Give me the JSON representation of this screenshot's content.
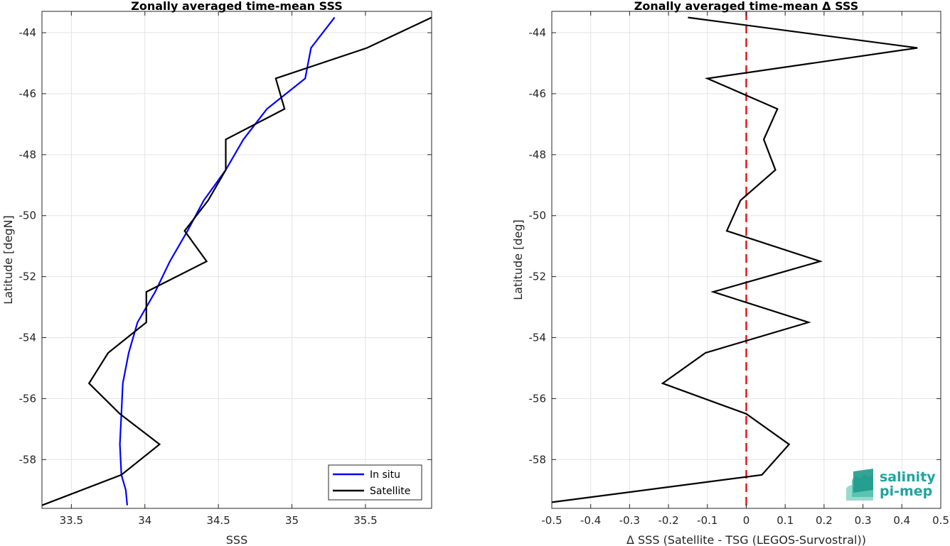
{
  "colors": {
    "in_situ": "#0000ff",
    "satellite": "#000000",
    "zero_line": "#e41a1c",
    "logo": "#20a39e"
  },
  "logo": {
    "line1": "salinity",
    "line2": "pi-mep"
  },
  "chart_data": [
    {
      "type": "line",
      "title": "Zonally averaged time-mean SSS",
      "xlabel": "SSS",
      "ylabel": "Latitude [degN]",
      "xlim": [
        33.3,
        35.95
      ],
      "ylim": [
        -59.6,
        -43.3
      ],
      "grid": true,
      "legend": "bottom-right",
      "xticks": [
        33.5,
        34,
        34.5,
        35,
        35.5
      ],
      "xtick_labels": [
        "33.5",
        "34",
        "34.5",
        "35",
        "35.5"
      ],
      "yticks": [
        -44,
        -46,
        -48,
        -50,
        -52,
        -54,
        -56,
        -58
      ],
      "ytick_labels": [
        "-44",
        "-46",
        "-48",
        "-50",
        "-52",
        "-54",
        "-56",
        "-58"
      ],
      "series": [
        {
          "name": "In situ",
          "color_key": "in_situ",
          "x": [
            35.29,
            35.13,
            35.09,
            34.83,
            34.67,
            34.55,
            34.4,
            34.29,
            34.17,
            34.07,
            33.95,
            33.89,
            33.85,
            33.84,
            33.83,
            33.84,
            33.87,
            33.88
          ],
          "y": [
            -43.5,
            -44.5,
            -45.5,
            -46.5,
            -47.5,
            -48.5,
            -49.5,
            -50.5,
            -51.5,
            -52.5,
            -53.5,
            -54.5,
            -55.5,
            -56.5,
            -57.5,
            -58.5,
            -59.0,
            -59.5
          ]
        },
        {
          "name": "Satellite",
          "color_key": "satellite",
          "x": [
            35.95,
            35.51,
            34.89,
            34.95,
            34.55,
            34.55,
            34.43,
            34.27,
            34.42,
            34.01,
            34.01,
            33.75,
            33.62,
            33.83,
            34.1,
            33.84,
            33.3
          ],
          "y": [
            -43.5,
            -44.5,
            -45.5,
            -46.5,
            -47.5,
            -48.5,
            -49.5,
            -50.5,
            -51.5,
            -52.5,
            -53.5,
            -54.5,
            -55.5,
            -56.5,
            -57.5,
            -58.5,
            -59.5
          ]
        }
      ]
    },
    {
      "type": "line",
      "title": "Zonally averaged time-mean Δ SSS",
      "xlabel": "Δ SSS (Satellite - TSG (LEGOS-Survostral))",
      "ylabel": "Latitude [deg]",
      "xlim": [
        -0.5,
        0.5
      ],
      "ylim": [
        -59.6,
        -43.3
      ],
      "grid": true,
      "xticks": [
        -0.5,
        -0.4,
        -0.3,
        -0.2,
        -0.1,
        0,
        0.1,
        0.2,
        0.3,
        0.4,
        0.5
      ],
      "xtick_labels": [
        "-0.5",
        "-0.4",
        "-0.3",
        "-0.2",
        "-0.1",
        "0",
        "0.1",
        "0.2",
        "0.3",
        "0.4",
        "0.5"
      ],
      "yticks": [
        -44,
        -46,
        -48,
        -50,
        -52,
        -54,
        -56,
        -58
      ],
      "ytick_labels": [
        "-44",
        "-46",
        "-48",
        "-50",
        "-52",
        "-54",
        "-56",
        "-58"
      ],
      "reference_line": {
        "x": 0,
        "style": "dashed",
        "color_key": "zero_line"
      },
      "series": [
        {
          "color_key": "satellite",
          "x": [
            -0.15,
            0.44,
            -0.1,
            0.08,
            0.045,
            0.075,
            -0.015,
            -0.05,
            0.19,
            -0.085,
            0.16,
            -0.105,
            -0.215,
            0.0,
            0.11,
            0.04,
            -0.5
          ],
          "y": [
            -43.5,
            -44.5,
            -45.5,
            -46.5,
            -47.5,
            -48.5,
            -49.5,
            -50.5,
            -51.5,
            -52.5,
            -53.5,
            -54.5,
            -55.5,
            -56.5,
            -57.5,
            -58.5,
            -59.4
          ]
        }
      ]
    }
  ]
}
